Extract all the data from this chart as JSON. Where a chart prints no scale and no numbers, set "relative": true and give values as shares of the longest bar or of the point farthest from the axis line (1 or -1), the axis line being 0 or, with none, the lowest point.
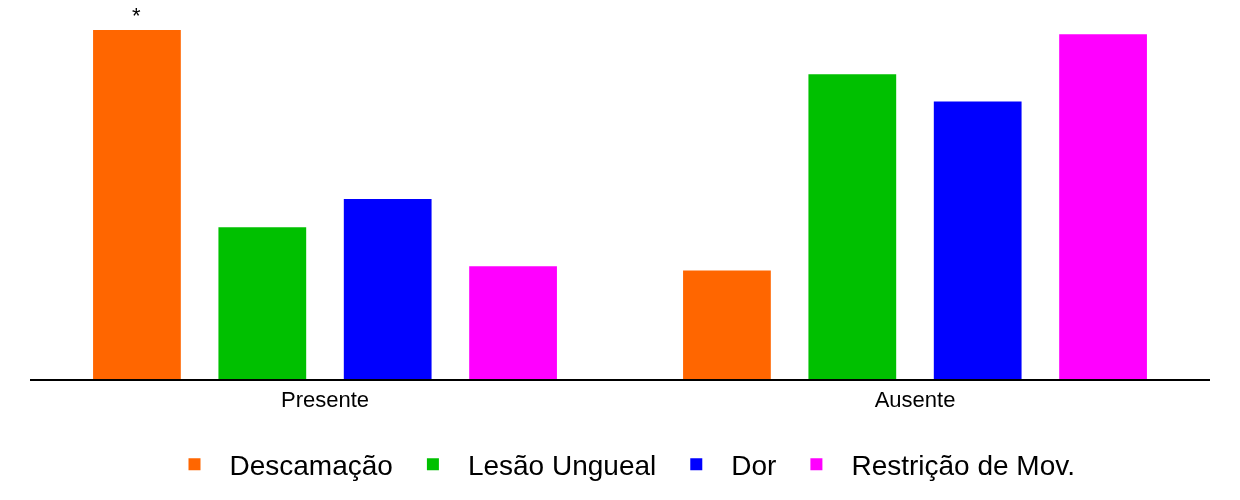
{
  "chart_data": {
    "type": "bar",
    "relative": true,
    "categories": [
      "Presente",
      "Ausente"
    ],
    "series": [
      {
        "name": "Descamação",
        "color": "#ff6600",
        "values": [
          1,
          0.311
        ]
      },
      {
        "name": "Lesão Ungueal",
        "color": "#00c000",
        "values": [
          0.435,
          0.873
        ]
      },
      {
        "name": "Dor",
        "color": "#0000ff",
        "values": [
          0.516,
          0.795
        ]
      },
      {
        "name": "Restrição de Mov.",
        "color": "#ff00ff",
        "values": [
          0.323,
          0.988
        ]
      }
    ],
    "annotations": [
      "*"
    ],
    "legend": "bottom"
  }
}
